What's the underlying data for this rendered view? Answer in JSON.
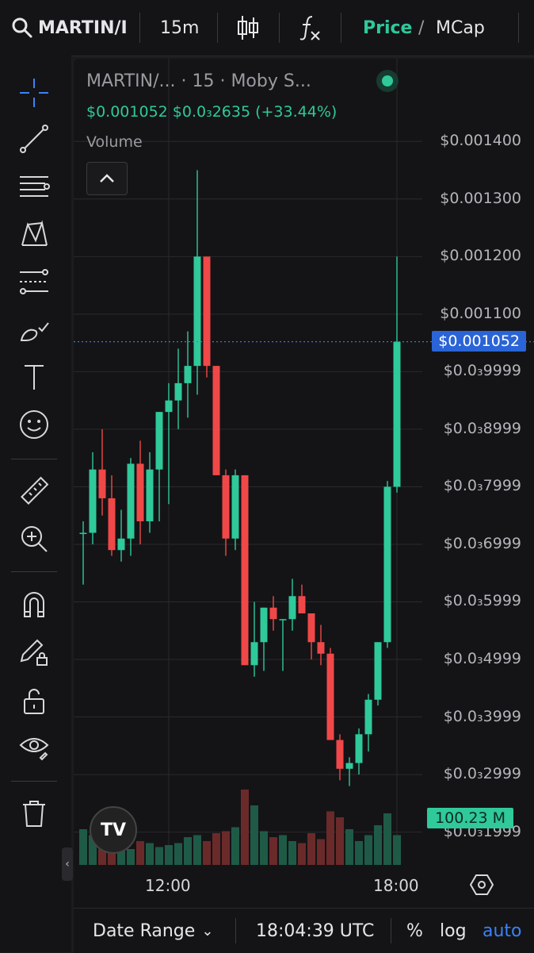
{
  "topbar": {
    "symbol": "MARTIN/I",
    "interval": "15m",
    "price_label": "Price",
    "slash": "/",
    "mcap_label": "MCap"
  },
  "icons": {
    "search": "search-icon",
    "candles": "candlestick-icon",
    "fx": "indicators-icon",
    "tools": [
      "crosshair-icon",
      "trend-line-icon",
      "horizontal-lines-icon",
      "pattern-icon",
      "fib-icon",
      "brush-icon",
      "text-icon",
      "emoji-icon",
      "ruler-icon",
      "zoom-in-icon",
      "magnet-icon",
      "lock-drawing-icon",
      "unlock-icon",
      "eye-icon",
      "trash-icon"
    ]
  },
  "chart": {
    "title": "MARTIN/...   · 15 · Moby S...",
    "price_line": "$0.001052  $0.0₃2635 (+33.44%)",
    "volume_label": "Volume",
    "toggle_glyph": "^",
    "current_price_tag": "$0.001052",
    "volume_tag": "100.23 M",
    "logo_text": "TV"
  },
  "chart_data": {
    "type": "candlestick",
    "y_tick_labels": [
      "$0.001400",
      "$0.001300",
      "$0.001200",
      "$0.001100",
      "$0.0₃9999",
      "$0.0₃8999",
      "$0.0₃7999",
      "$0.0₃6999",
      "$0.0₃5999",
      "$0.0₃4999",
      "$0.0₃3999",
      "$0.0₃2999",
      "$0.0₃1999"
    ],
    "y_ticks_values": [
      0.0014,
      0.0013,
      0.0012,
      0.0011,
      0.001,
      0.0009,
      0.0008,
      0.0007,
      0.0006,
      0.0005,
      0.0004,
      0.0003,
      0.0002
    ],
    "x_tick_labels": [
      "12:00",
      "18:00"
    ],
    "x_tick_index": [
      9,
      33
    ],
    "ylim": [
      0.000165,
      0.00145
    ],
    "current_price": 0.001052,
    "colors": {
      "up": "#2fc99a",
      "down": "#f04848",
      "up_vol": "#1f5a47",
      "down_vol": "#6a2a2a",
      "grid": "#2a2a2e",
      "current_line": "#3b82f6"
    },
    "candles": [
      {
        "o": 0.00072,
        "h": 0.00074,
        "l": 0.00063,
        "c": 0.00072
      },
      {
        "o": 0.00072,
        "h": 0.00086,
        "l": 0.0007,
        "c": 0.00083
      },
      {
        "o": 0.00083,
        "h": 0.0009,
        "l": 0.00075,
        "c": 0.00078
      },
      {
        "o": 0.00078,
        "h": 0.00082,
        "l": 0.00068,
        "c": 0.00069
      },
      {
        "o": 0.00069,
        "h": 0.00076,
        "l": 0.00067,
        "c": 0.00071
      },
      {
        "o": 0.00071,
        "h": 0.00085,
        "l": 0.00068,
        "c": 0.00084
      },
      {
        "o": 0.00084,
        "h": 0.00088,
        "l": 0.0007,
        "c": 0.00074
      },
      {
        "o": 0.00074,
        "h": 0.00086,
        "l": 0.00072,
        "c": 0.00083
      },
      {
        "o": 0.00083,
        "h": 0.00093,
        "l": 0.00074,
        "c": 0.00093
      },
      {
        "o": 0.00093,
        "h": 0.00098,
        "l": 0.00077,
        "c": 0.00095
      },
      {
        "o": 0.00095,
        "h": 0.00104,
        "l": 0.0009,
        "c": 0.00098
      },
      {
        "o": 0.00098,
        "h": 0.00107,
        "l": 0.00092,
        "c": 0.00101
      },
      {
        "o": 0.00101,
        "h": 0.00135,
        "l": 0.00096,
        "c": 0.0012
      },
      {
        "o": 0.0012,
        "h": 0.0012,
        "l": 0.00099,
        "c": 0.00101
      },
      {
        "o": 0.00101,
        "h": 0.00101,
        "l": 0.00082,
        "c": 0.00082
      },
      {
        "o": 0.00082,
        "h": 0.00083,
        "l": 0.00068,
        "c": 0.00071
      },
      {
        "o": 0.00071,
        "h": 0.00083,
        "l": 0.00069,
        "c": 0.00082
      },
      {
        "o": 0.00082,
        "h": 0.00082,
        "l": 0.00049,
        "c": 0.00049
      },
      {
        "o": 0.00049,
        "h": 0.0006,
        "l": 0.00047,
        "c": 0.00053
      },
      {
        "o": 0.00053,
        "h": 0.00059,
        "l": 0.00048,
        "c": 0.00059
      },
      {
        "o": 0.00059,
        "h": 0.00061,
        "l": 0.00055,
        "c": 0.00057
      },
      {
        "o": 0.00057,
        "h": 0.00057,
        "l": 0.00048,
        "c": 0.00057
      },
      {
        "o": 0.00057,
        "h": 0.00064,
        "l": 0.00055,
        "c": 0.00061
      },
      {
        "o": 0.00061,
        "h": 0.00063,
        "l": 0.00058,
        "c": 0.00058
      },
      {
        "o": 0.00058,
        "h": 0.00058,
        "l": 0.0005,
        "c": 0.00053
      },
      {
        "o": 0.00053,
        "h": 0.00056,
        "l": 0.00049,
        "c": 0.00051
      },
      {
        "o": 0.00051,
        "h": 0.00052,
        "l": 0.00036,
        "c": 0.00036
      },
      {
        "o": 0.00036,
        "h": 0.00037,
        "l": 0.00029,
        "c": 0.00031
      },
      {
        "o": 0.00031,
        "h": 0.00033,
        "l": 0.00028,
        "c": 0.00032
      },
      {
        "o": 0.00032,
        "h": 0.00038,
        "l": 0.0003,
        "c": 0.00037
      },
      {
        "o": 0.00037,
        "h": 0.00044,
        "l": 0.00034,
        "c": 0.00043
      },
      {
        "o": 0.00043,
        "h": 0.00053,
        "l": 0.00042,
        "c": 0.00053
      },
      {
        "o": 0.00053,
        "h": 0.00081,
        "l": 0.00052,
        "c": 0.0008
      },
      {
        "o": 0.0008,
        "h": 0.0012,
        "l": 0.00079,
        "c": 0.001052
      }
    ],
    "volume_rel": [
      0.9,
      0.75,
      0.4,
      0.65,
      0.5,
      0.4,
      0.6,
      0.55,
      0.45,
      0.5,
      0.55,
      0.7,
      0.75,
      0.6,
      0.8,
      0.85,
      0.95,
      1.9,
      1.5,
      0.85,
      0.7,
      0.75,
      0.6,
      0.55,
      0.8,
      0.65,
      1.35,
      1.2,
      0.9,
      0.6,
      0.75,
      1.0,
      1.3,
      0.75
    ]
  },
  "bottombar": {
    "date_range": "Date Range",
    "chevron": "⌄",
    "time": "18:04:39 UTC",
    "percent": "%",
    "log": "log",
    "auto": "auto"
  }
}
